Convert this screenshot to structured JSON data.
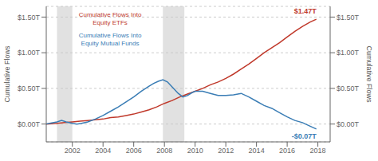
{
  "chart_data": {
    "type": "line",
    "y_label": "Cumulative Flows",
    "y2_label": "Cumulative Flows",
    "xlim": [
      2000.3,
      2018.8
    ],
    "ylim": [
      -0.25,
      1.65
    ],
    "xticks": [
      2002,
      2004,
      2006,
      2008,
      2010,
      2012,
      2014,
      2016,
      2018
    ],
    "yticks": [
      {
        "value": 0.0,
        "label": "$0.00T"
      },
      {
        "value": 0.5,
        "label": "$0.50T"
      },
      {
        "value": 1.0,
        "label": "$1.00T"
      },
      {
        "value": 1.5,
        "label": "$1.50T"
      }
    ],
    "y2lim": [
      -0.25,
      1.65
    ],
    "y2ticks": [
      {
        "value": 0.0,
        "label": "$0.00T"
      },
      {
        "value": 0.5,
        "label": "$0.50T"
      },
      {
        "value": 1.0,
        "label": "$1.00T"
      },
      {
        "value": 1.5,
        "label": "$1.50T"
      }
    ],
    "grid": "y",
    "recession_bands": [
      [
        2001.0,
        2002.0
      ],
      [
        2007.9,
        2009.3
      ]
    ],
    "series": [
      {
        "name": "Cumulative Flows Into\nEquity ETFs",
        "color": "#c0392b",
        "x": [
          2000.3,
          2001.0,
          2001.5,
          2002.0,
          2002.5,
          2003.0,
          2003.5,
          2004.0,
          2004.5,
          2005.0,
          2005.5,
          2006.0,
          2006.5,
          2007.0,
          2007.5,
          2008.0,
          2008.5,
          2009.0,
          2009.5,
          2010.0,
          2010.5,
          2011.0,
          2011.5,
          2012.0,
          2012.5,
          2013.0,
          2013.5,
          2014.0,
          2014.5,
          2015.0,
          2015.5,
          2016.0,
          2016.5,
          2017.0,
          2017.5,
          2017.9
        ],
        "values": [
          0.0,
          0.01,
          0.02,
          0.03,
          0.04,
          0.05,
          0.06,
          0.07,
          0.09,
          0.1,
          0.12,
          0.14,
          0.17,
          0.2,
          0.24,
          0.29,
          0.33,
          0.38,
          0.42,
          0.46,
          0.5,
          0.55,
          0.59,
          0.64,
          0.7,
          0.77,
          0.84,
          0.92,
          1.0,
          1.07,
          1.14,
          1.22,
          1.3,
          1.37,
          1.43,
          1.47
        ]
      },
      {
        "name": "Cumulative Flows Into\nEquity Mutual Funds",
        "color": "#3a7db5",
        "x": [
          2000.3,
          2001.0,
          2001.3,
          2001.6,
          2002.0,
          2002.3,
          2002.6,
          2003.0,
          2003.5,
          2004.0,
          2004.5,
          2005.0,
          2005.5,
          2006.0,
          2006.5,
          2007.0,
          2007.3,
          2007.6,
          2007.9,
          2008.2,
          2008.5,
          2008.9,
          2009.2,
          2009.5,
          2009.8,
          2010.0,
          2010.5,
          2011.0,
          2011.5,
          2012.0,
          2012.5,
          2013.0,
          2013.5,
          2014.0,
          2014.5,
          2015.0,
          2015.5,
          2016.0,
          2016.5,
          2017.0,
          2017.5,
          2017.9
        ],
        "values": [
          0.0,
          0.03,
          0.05,
          0.03,
          0.01,
          0.0,
          0.01,
          0.03,
          0.07,
          0.12,
          0.18,
          0.24,
          0.31,
          0.38,
          0.46,
          0.53,
          0.57,
          0.6,
          0.62,
          0.59,
          0.52,
          0.43,
          0.38,
          0.4,
          0.44,
          0.46,
          0.46,
          0.43,
          0.4,
          0.4,
          0.41,
          0.43,
          0.38,
          0.32,
          0.26,
          0.22,
          0.16,
          0.1,
          0.05,
          0.02,
          -0.03,
          -0.07
        ]
      }
    ],
    "annotations": [
      {
        "text": "$1.47T",
        "x": 2017.9,
        "y": 1.47,
        "color": "#c0392b"
      },
      {
        "text": "-$0.07T",
        "x": 2017.9,
        "y": -0.07,
        "color": "#3a7db5"
      }
    ]
  }
}
